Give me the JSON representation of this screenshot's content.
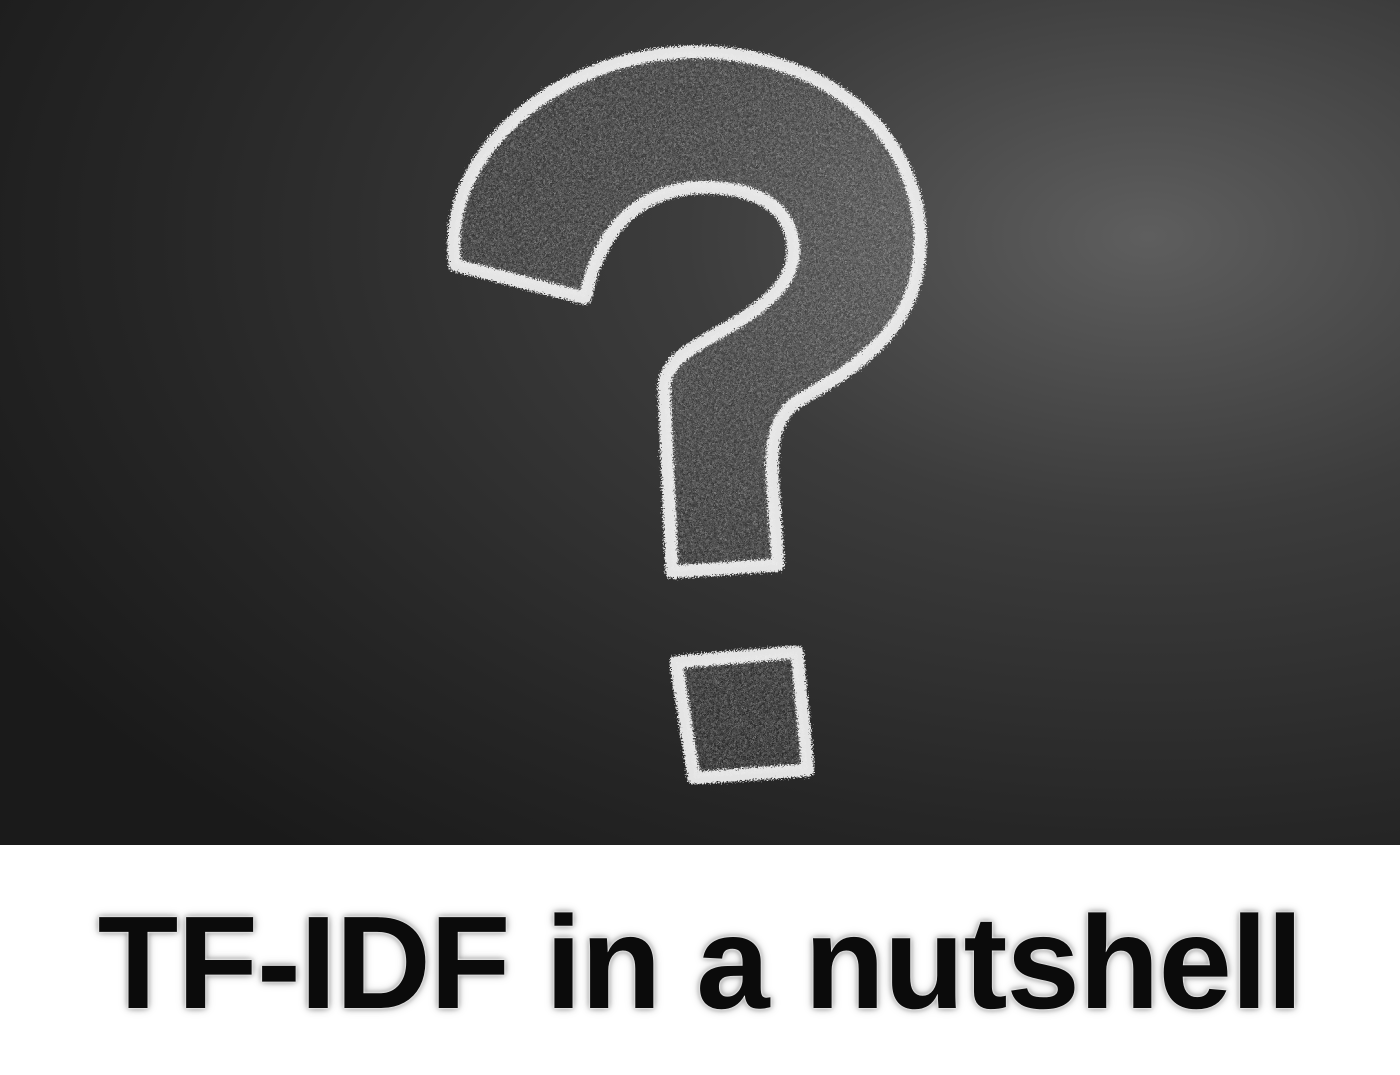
{
  "caption": {
    "text": "TF-IDF in a nutshell"
  },
  "scene": {
    "board_icon": "chalk-question-mark-icon",
    "board_color_dark": "#1c1c1c",
    "board_color_light": "#5a5a5a",
    "chalk_color": "#f2f2f2",
    "caption_background": "#ffffff",
    "caption_color": "#0b0b0b"
  }
}
